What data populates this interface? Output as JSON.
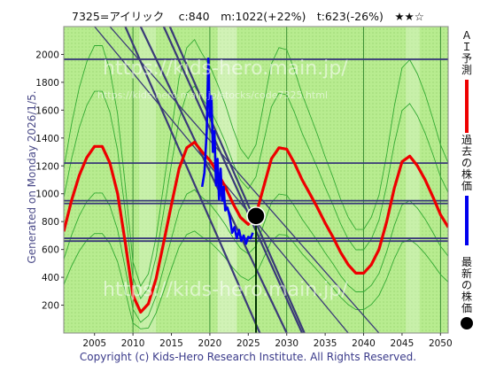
{
  "header": {
    "title": "7325=アイリック　 c:840　m:1022(+22%)　t:623(-26%)　★★☆"
  },
  "side_label": "Generated on Monday 2026/1/5.",
  "footer": {
    "copyright": "Copyright (c) Kids-Hero Research Institute. All Rights Reserved."
  },
  "watermarks": {
    "big": "https://kids-hero.main.jp/",
    "small": "https://kids-hero.main.jp/stocks/code7325.html"
  },
  "legend": [
    {
      "text": "ＡＩ予測",
      "color": "#ee0000"
    },
    {
      "text": "過去の株価",
      "color": "#0000ee"
    },
    {
      "text": "最新の株価",
      "color": "#000000"
    }
  ],
  "colors": {
    "background": "#b8ec90",
    "dotted": "#9dd874",
    "band": "#33aa33",
    "ai": "#ee0000",
    "past": "#0000ee",
    "frame": "#3a3a78"
  },
  "chart_data": {
    "type": "line",
    "xlim": [
      2001,
      2051
    ],
    "ylim": [
      0,
      2200
    ],
    "xticks": [
      2005,
      2010,
      2015,
      2020,
      2025,
      2030,
      2035,
      2040,
      2045,
      2050
    ],
    "yticks": [
      200,
      400,
      600,
      800,
      1000,
      1200,
      1400,
      1600,
      1800,
      2000
    ],
    "grid": false,
    "horizontal_lines": [
      1965,
      1220,
      950,
      930,
      680,
      660
    ],
    "diagonal_lines": [
      {
        "x": [
          2005,
          2038
        ],
        "y": [
          2200,
          0
        ]
      },
      {
        "x": [
          2007,
          2042
        ],
        "y": [
          2200,
          0
        ]
      },
      {
        "x": [
          2014,
          2032
        ],
        "y": [
          2200,
          0
        ]
      },
      {
        "x": [
          2014.8,
          2032.3
        ],
        "y": [
          2200,
          0
        ]
      },
      {
        "x": [
          2011,
          2030
        ],
        "y": [
          2200,
          0
        ]
      },
      {
        "x": [
          2009,
          2026.5
        ],
        "y": [
          2200,
          0
        ]
      }
    ],
    "latest": {
      "x": 2026.0,
      "y": 840
    },
    "latest_vline": 2026.0,
    "ai_forecast": {
      "x": [
        2001,
        2002,
        2003,
        2004,
        2005,
        2006,
        2007,
        2008,
        2009,
        2010,
        2011,
        2012,
        2013,
        2014,
        2015,
        2016,
        2017,
        2018,
        2019,
        2020,
        2021,
        2022,
        2023,
        2024,
        2025,
        2026,
        2027,
        2028,
        2029,
        2030,
        2031,
        2032,
        2033,
        2034,
        2035,
        2036,
        2037,
        2038,
        2039,
        2040,
        2041,
        2042,
        2043,
        2044,
        2045,
        2046,
        2047,
        2048,
        2049,
        2050,
        2051
      ],
      "y": [
        730,
        950,
        1130,
        1260,
        1340,
        1340,
        1220,
        1000,
        650,
        270,
        150,
        210,
        390,
        650,
        920,
        1180,
        1330,
        1370,
        1300,
        1240,
        1150,
        1050,
        930,
        830,
        780,
        850,
        1050,
        1250,
        1330,
        1320,
        1220,
        1100,
        1000,
        900,
        790,
        690,
        580,
        490,
        430,
        430,
        490,
        600,
        800,
        1040,
        1230,
        1270,
        1200,
        1100,
        980,
        850,
        760
      ]
    },
    "past_price": {
      "x": [
        2019.0,
        2019.3,
        2019.6,
        2019.8,
        2020.0,
        2020.2,
        2020.4,
        2020.6,
        2020.8,
        2021.0,
        2021.2,
        2021.4,
        2021.6,
        2021.8,
        2022.0,
        2022.3,
        2022.6,
        2022.9,
        2023.2,
        2023.5,
        2023.8,
        2024.1,
        2024.4,
        2024.7,
        2025.0,
        2025.3,
        2025.6
      ],
      "y": [
        1050,
        1150,
        1450,
        1970,
        1550,
        1700,
        1300,
        1450,
        1060,
        1250,
        960,
        1180,
        950,
        1050,
        880,
        900,
        830,
        720,
        760,
        680,
        740,
        660,
        700,
        640,
        690,
        680,
        720
      ]
    }
  }
}
